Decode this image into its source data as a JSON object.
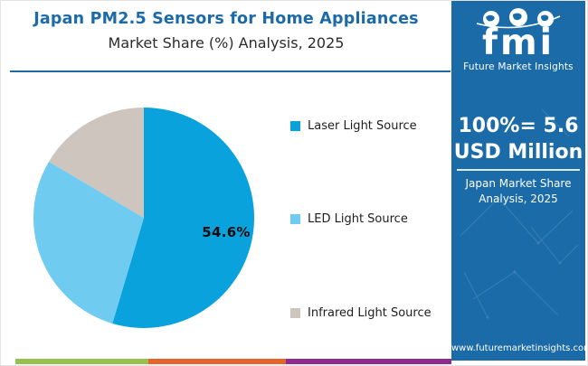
{
  "header": {
    "title_line1": "Japan PM2.5 Sensors for Home Appliances",
    "title_line2": "Market Share (%) Analysis, 2025",
    "accent_color": "#1C6BA8"
  },
  "chart_data": {
    "type": "pie",
    "title": "Japan PM2.5 Sensors for Home Appliances Market Share (%) Analysis, 2025",
    "labels": [
      "Laser Light Source",
      "LED Light Source",
      "Infrared Light Source"
    ],
    "values": [
      54.6,
      28.9,
      16.5
    ],
    "colors": [
      "#0AA2DC",
      "#6FCBF0",
      "#CEC5BF"
    ],
    "start_angle_deg": 0,
    "direction": "clockwise",
    "legend_position": "right",
    "data_labels": [
      {
        "label": "Laser Light Source",
        "text": "54.6%"
      }
    ]
  },
  "sidebar": {
    "bg_color": "#1A6BA8",
    "logo": {
      "word": "fmi",
      "caption": "Future Market Insights"
    },
    "stat": {
      "line1": "100%= 5.6",
      "line2": "USD Million"
    },
    "subtitle": {
      "line1": "Japan Market Share",
      "line2": "Analysis, 2025"
    },
    "website": "www.futuremarketinsights.com"
  },
  "footer": {
    "bar_colors": [
      "#95C14C",
      "#E8632C",
      "#8F2A90"
    ]
  }
}
